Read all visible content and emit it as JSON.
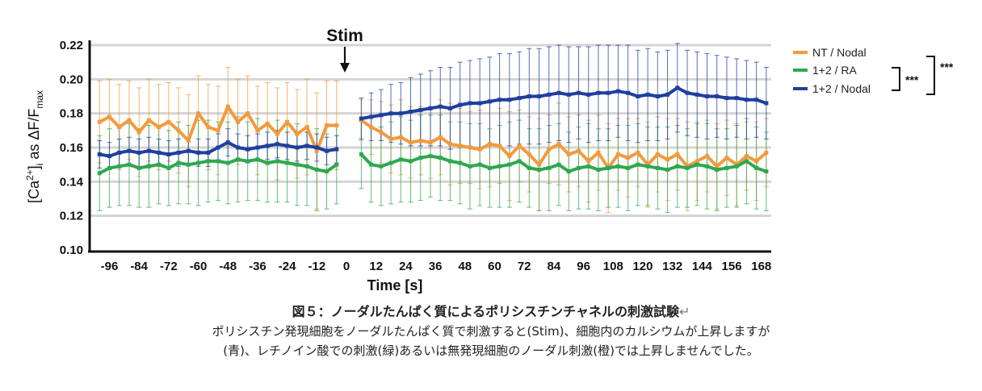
{
  "chart_data": {
    "type": "line",
    "ylabel": "[Ca²⁺]i as ΔF/Fmax",
    "ylabel_parts": {
      "a": "[Ca",
      "b": "2+",
      "c": "]",
      "d": "i",
      "e": " as ΔF/F",
      "f": "max"
    },
    "xlabel": "Time [s]",
    "ylim": [
      0.1,
      0.22
    ],
    "xlim": [
      -104,
      172
    ],
    "yticks": [
      "0.10",
      "0.12",
      "0.14",
      "0.16",
      "0.18",
      "0.20",
      "0.22"
    ],
    "xticks": [
      "-96",
      "-84",
      "-72",
      "-60",
      "-48",
      "-36",
      "-24",
      "-12",
      "0",
      "12",
      "24",
      "36",
      "48",
      "60",
      "72",
      "84",
      "96",
      "108",
      "120",
      "132",
      "144",
      "156",
      "168"
    ],
    "stim_label": "Stim",
    "stim_time": 0,
    "series": [
      {
        "name": "NT / Nodal",
        "color": "#f39a3d",
        "pre_x": [
          -100,
          -96,
          -92,
          -88,
          -84,
          -80,
          -76,
          -72,
          -68,
          -64,
          -60,
          -56,
          -52,
          -48,
          -44,
          -40,
          -36,
          -32,
          -28,
          -24,
          -20,
          -16,
          -12,
          -8,
          -4
        ],
        "pre_y": [
          0.175,
          0.178,
          0.172,
          0.176,
          0.169,
          0.176,
          0.172,
          0.175,
          0.17,
          0.164,
          0.18,
          0.172,
          0.17,
          0.184,
          0.175,
          0.18,
          0.17,
          0.174,
          0.168,
          0.175,
          0.168,
          0.172,
          0.158,
          0.173,
          0.173
        ],
        "pre_err": [
          0.024,
          0.022,
          0.025,
          0.023,
          0.026,
          0.024,
          0.025,
          0.023,
          0.025,
          0.027,
          0.022,
          0.025,
          0.026,
          0.023,
          0.025,
          0.022,
          0.026,
          0.024,
          0.027,
          0.023,
          0.026,
          0.028,
          0.034,
          0.026,
          0.026
        ],
        "post_x": [
          6,
          10,
          14,
          18,
          22,
          26,
          30,
          34,
          38,
          42,
          46,
          50,
          54,
          58,
          62,
          66,
          70,
          74,
          78,
          82,
          86,
          90,
          94,
          98,
          102,
          106,
          110,
          114,
          118,
          122,
          126,
          130,
          134,
          138,
          142,
          146,
          150,
          154,
          158,
          162,
          166,
          170
        ],
        "post_y": [
          0.176,
          0.172,
          0.169,
          0.165,
          0.166,
          0.163,
          0.164,
          0.163,
          0.166,
          0.162,
          0.161,
          0.16,
          0.159,
          0.162,
          0.161,
          0.155,
          0.161,
          0.156,
          0.15,
          0.159,
          0.162,
          0.156,
          0.158,
          0.152,
          0.157,
          0.148,
          0.156,
          0.154,
          0.157,
          0.15,
          0.156,
          0.153,
          0.156,
          0.149,
          0.152,
          0.155,
          0.149,
          0.154,
          0.15,
          0.155,
          0.152,
          0.157
        ],
        "post_err": [
          0.012,
          0.016,
          0.018,
          0.02,
          0.022,
          0.021,
          0.02,
          0.021,
          0.022,
          0.024,
          0.022,
          0.021,
          0.023,
          0.025,
          0.022,
          0.026,
          0.021,
          0.022,
          0.027,
          0.02,
          0.024,
          0.022,
          0.021,
          0.024,
          0.022,
          0.026,
          0.021,
          0.023,
          0.02,
          0.025,
          0.022,
          0.024,
          0.021,
          0.026,
          0.023,
          0.021,
          0.025,
          0.022,
          0.024,
          0.02,
          0.023,
          0.02
        ]
      },
      {
        "name": "1+2 / RA",
        "color": "#2fa84f",
        "pre_x": [
          -100,
          -96,
          -92,
          -88,
          -84,
          -80,
          -76,
          -72,
          -68,
          -64,
          -60,
          -56,
          -52,
          -48,
          -44,
          -40,
          -36,
          -32,
          -28,
          -24,
          -20,
          -16,
          -12,
          -8,
          -4
        ],
        "pre_y": [
          0.145,
          0.148,
          0.149,
          0.15,
          0.148,
          0.149,
          0.15,
          0.148,
          0.151,
          0.15,
          0.151,
          0.152,
          0.152,
          0.151,
          0.153,
          0.152,
          0.153,
          0.151,
          0.152,
          0.151,
          0.15,
          0.149,
          0.147,
          0.146,
          0.15
        ],
        "pre_err": [
          0.022,
          0.023,
          0.023,
          0.024,
          0.023,
          0.024,
          0.023,
          0.022,
          0.024,
          0.023,
          0.025,
          0.024,
          0.023,
          0.024,
          0.025,
          0.023,
          0.024,
          0.023,
          0.024,
          0.023,
          0.024,
          0.023,
          0.024,
          0.022,
          0.023
        ],
        "post_x": [
          6,
          10,
          14,
          18,
          22,
          26,
          30,
          34,
          38,
          42,
          46,
          50,
          54,
          58,
          62,
          66,
          70,
          74,
          78,
          82,
          86,
          90,
          94,
          98,
          102,
          106,
          110,
          114,
          118,
          122,
          126,
          130,
          134,
          138,
          142,
          146,
          150,
          154,
          158,
          162,
          166,
          170
        ],
        "post_y": [
          0.156,
          0.15,
          0.149,
          0.151,
          0.153,
          0.152,
          0.154,
          0.155,
          0.154,
          0.152,
          0.151,
          0.149,
          0.15,
          0.148,
          0.149,
          0.15,
          0.152,
          0.148,
          0.147,
          0.148,
          0.15,
          0.146,
          0.148,
          0.149,
          0.147,
          0.148,
          0.149,
          0.148,
          0.15,
          0.149,
          0.148,
          0.147,
          0.149,
          0.148,
          0.15,
          0.149,
          0.147,
          0.148,
          0.149,
          0.152,
          0.148,
          0.146
        ],
        "post_err": [
          0.02,
          0.022,
          0.023,
          0.024,
          0.025,
          0.024,
          0.025,
          0.024,
          0.025,
          0.023,
          0.024,
          0.025,
          0.024,
          0.023,
          0.024,
          0.025,
          0.024,
          0.023,
          0.024,
          0.025,
          0.024,
          0.023,
          0.024,
          0.025,
          0.024,
          0.023,
          0.024,
          0.025,
          0.024,
          0.023,
          0.024,
          0.025,
          0.024,
          0.023,
          0.024,
          0.025,
          0.024,
          0.023,
          0.024,
          0.025,
          0.024,
          0.023
        ]
      },
      {
        "name": "1+2 / Nodal",
        "color": "#1f3f9f",
        "pre_x": [
          -100,
          -96,
          -92,
          -88,
          -84,
          -80,
          -76,
          -72,
          -68,
          -64,
          -60,
          -56,
          -52,
          -48,
          -44,
          -40,
          -36,
          -32,
          -28,
          -24,
          -20,
          -16,
          -12,
          -8,
          -4
        ],
        "pre_y": [
          0.156,
          0.155,
          0.157,
          0.158,
          0.157,
          0.158,
          0.157,
          0.156,
          0.157,
          0.158,
          0.157,
          0.157,
          0.16,
          0.163,
          0.16,
          0.159,
          0.16,
          0.161,
          0.162,
          0.161,
          0.16,
          0.161,
          0.16,
          0.158,
          0.159
        ],
        "pre_err": [
          0.008,
          0.008,
          0.008,
          0.008,
          0.008,
          0.008,
          0.008,
          0.008,
          0.008,
          0.008,
          0.008,
          0.008,
          0.008,
          0.008,
          0.008,
          0.008,
          0.008,
          0.008,
          0.008,
          0.008,
          0.008,
          0.008,
          0.008,
          0.008,
          0.008
        ],
        "post_x": [
          6,
          10,
          14,
          18,
          22,
          26,
          30,
          34,
          38,
          42,
          46,
          50,
          54,
          58,
          62,
          66,
          70,
          74,
          78,
          82,
          86,
          90,
          94,
          98,
          102,
          106,
          110,
          114,
          118,
          122,
          126,
          130,
          134,
          138,
          142,
          146,
          150,
          154,
          158,
          162,
          166,
          170
        ],
        "post_y": [
          0.177,
          0.178,
          0.179,
          0.18,
          0.18,
          0.181,
          0.182,
          0.183,
          0.184,
          0.183,
          0.185,
          0.186,
          0.186,
          0.187,
          0.188,
          0.188,
          0.189,
          0.19,
          0.19,
          0.191,
          0.192,
          0.191,
          0.192,
          0.191,
          0.192,
          0.192,
          0.193,
          0.192,
          0.19,
          0.191,
          0.19,
          0.191,
          0.195,
          0.192,
          0.191,
          0.19,
          0.19,
          0.189,
          0.189,
          0.188,
          0.188,
          0.186
        ],
        "post_err": [
          0.012,
          0.014,
          0.015,
          0.017,
          0.018,
          0.02,
          0.021,
          0.022,
          0.023,
          0.024,
          0.025,
          0.025,
          0.026,
          0.026,
          0.027,
          0.027,
          0.027,
          0.028,
          0.028,
          0.028,
          0.028,
          0.028,
          0.027,
          0.028,
          0.028,
          0.028,
          0.027,
          0.028,
          0.027,
          0.027,
          0.026,
          0.026,
          0.026,
          0.025,
          0.025,
          0.025,
          0.024,
          0.024,
          0.023,
          0.023,
          0.022,
          0.021
        ]
      }
    ],
    "significance": [
      "***",
      "***"
    ],
    "legend_position": "right"
  },
  "caption": {
    "title": "図５：ノーダルたんぱく質によるポリシスチンチャネルの刺激試験",
    "title_mark": "↵",
    "line1": "ポリシスチン発現細胞をノーダルたんぱく質で刺激すると(Stim)、細胞内のカルシウムが上昇しますが",
    "line2": "(青)、レチノイン酸での刺激(緑)あるいは無発現細胞のノーダル刺激(橙)では上昇しませんでした。"
  }
}
